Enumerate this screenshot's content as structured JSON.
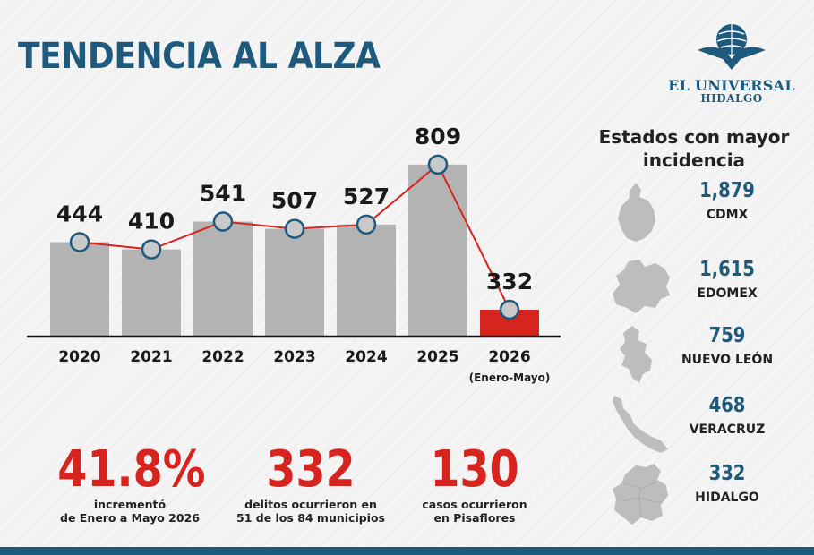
{
  "title": "TENDENCIA AL ALZA",
  "logo": {
    "name": "EL UNIVERSAL",
    "sub": "HIDALGO"
  },
  "colors": {
    "brand_blue": "#1d5a7e",
    "bar_gray": "#b3b3b3",
    "highlight_red": "#d7241e",
    "line_red": "#d7241e"
  },
  "chart_data": {
    "type": "bar",
    "categories": [
      "2020",
      "2021",
      "2022",
      "2023",
      "2024",
      "2025",
      "2026"
    ],
    "category_notes": [
      "",
      "",
      "",
      "",
      "",
      "",
      "(Enero-Mayo)"
    ],
    "values": [
      444,
      410,
      541,
      507,
      527,
      809,
      332
    ],
    "highlight_index": 6,
    "line_overlay": true,
    "title": "",
    "xlabel": "",
    "ylabel": "",
    "grid": false
  },
  "sidebar": {
    "title": "Estados con mayor incidencia",
    "states": [
      {
        "value": "1,879",
        "name": "CDMX",
        "icon": "cdmx-map-icon"
      },
      {
        "value": "1,615",
        "name": "EDOMEX",
        "icon": "edomex-map-icon"
      },
      {
        "value": "759",
        "name": "NUEVO LEÓN",
        "icon": "nuevo-leon-map-icon"
      },
      {
        "value": "468",
        "name": "VERACRUZ",
        "icon": "veracruz-map-icon"
      },
      {
        "value": "332",
        "name": "HIDALGO",
        "icon": "hidalgo-map-icon"
      }
    ]
  },
  "stats": [
    {
      "value": "41.8%",
      "line1": "incrementó",
      "line2": "de Enero a Mayo 2026"
    },
    {
      "value": "332",
      "line1": "delitos ocurrieron en",
      "line2": "51 de los 84 municipios"
    },
    {
      "value": "130",
      "line1": "casos ocurrieron",
      "line2": "en Pisaflores"
    }
  ]
}
